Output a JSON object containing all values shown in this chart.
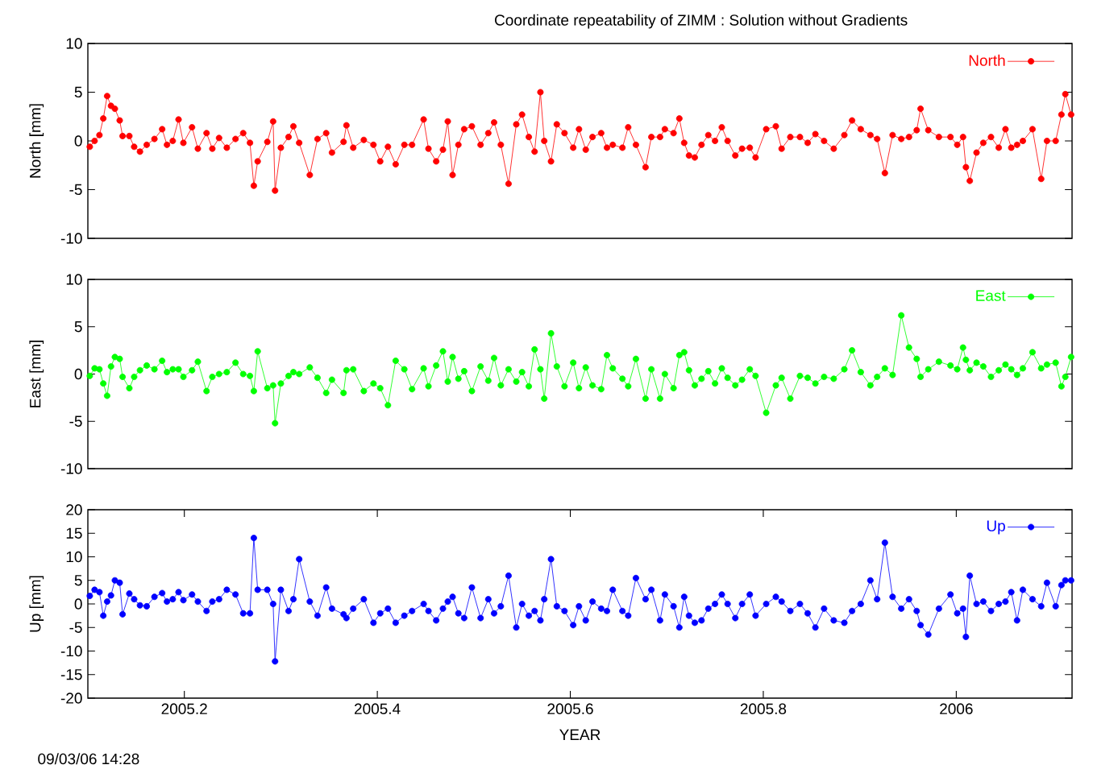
{
  "chart_data": [
    {
      "type": "line",
      "title": "Coordinate repeatability of ZIMM : Solution without Gradients",
      "ylabel": "North [mm]",
      "xlim": [
        2005.1,
        2006.12
      ],
      "ylim": [
        -10,
        10
      ],
      "yticks": [
        -10,
        -5,
        0,
        5,
        10
      ],
      "tick_labels": "y",
      "legend": "top right",
      "marker": "circle",
      "line_style": "solid",
      "x": [
        2005.102,
        2005.107,
        2005.112,
        2005.116,
        2005.12,
        2005.124,
        2005.128,
        2005.133,
        2005.136,
        2005.143,
        2005.148,
        2005.154,
        2005.161,
        2005.169,
        2005.177,
        2005.182,
        2005.188,
        2005.194,
        2005.199,
        2005.208,
        2005.214,
        2005.223,
        2005.229,
        2005.236,
        2005.244,
        2005.253,
        2005.261,
        2005.268,
        2005.272,
        2005.276,
        2005.286,
        2005.292,
        2005.294,
        2005.3,
        2005.308,
        2005.313,
        2005.319,
        2005.33,
        2005.338,
        2005.347,
        2005.353,
        2005.365,
        2005.368,
        2005.375,
        2005.386,
        2005.396,
        2005.403,
        2005.411,
        2005.419,
        2005.428,
        2005.436,
        2005.448,
        2005.453,
        2005.461,
        2005.468,
        2005.473,
        2005.478,
        2005.484,
        2005.49,
        2005.498,
        2005.507,
        2005.515,
        2005.521,
        2005.528,
        2005.536,
        2005.544,
        2005.55,
        2005.557,
        2005.563,
        2005.569,
        2005.573,
        2005.58,
        2005.586,
        2005.594,
        2005.603,
        2005.609,
        2005.616,
        2005.623,
        2005.632,
        2005.638,
        2005.644,
        2005.654,
        2005.66,
        2005.668,
        2005.678,
        2005.684,
        2005.693,
        2005.698,
        2005.707,
        2005.713,
        2005.718,
        2005.723,
        2005.729,
        2005.736,
        2005.743,
        2005.75,
        2005.757,
        2005.763,
        2005.771,
        2005.778,
        2005.786,
        2005.792,
        2005.803,
        2005.813,
        2005.819,
        2005.828,
        2005.838,
        2005.846,
        2005.854,
        2005.863,
        2005.873,
        2005.884,
        2005.892,
        2005.901,
        2005.911,
        2005.918,
        2005.926,
        2005.934,
        2005.943,
        2005.951,
        2005.959,
        2005.963,
        2005.971,
        2005.982,
        2005.994,
        2006.001,
        2006.007,
        2006.01,
        2006.014,
        2006.021,
        2006.028,
        2006.036,
        2006.044,
        2006.051,
        2006.057,
        2006.063,
        2006.069,
        2006.079,
        2006.088,
        2006.094,
        2006.103,
        2006.109,
        2006.113,
        2006.119
      ],
      "series": [
        {
          "name": "North",
          "color": "#ff0000",
          "values": [
            -0.6,
            0,
            0.6,
            2.3,
            4.6,
            3.6,
            3.3,
            2.1,
            0.5,
            0.5,
            -0.6,
            -1.1,
            -0.4,
            0.2,
            1.2,
            -0.4,
            0,
            2.2,
            -0.2,
            1.4,
            -0.8,
            0.8,
            -0.8,
            0.3,
            -0.7,
            0.2,
            0.8,
            -0.2,
            -4.6,
            -2.1,
            -0.1,
            2,
            -5.1,
            -0.7,
            0.4,
            1.5,
            -0.2,
            -3.5,
            0.2,
            0.8,
            -1.2,
            -0.1,
            1.6,
            -0.7,
            0.1,
            -0.4,
            -2.1,
            -0.6,
            -2.4,
            -0.4,
            -0.4,
            2.2,
            -0.8,
            -2.1,
            -0.9,
            2,
            -3.5,
            -0.4,
            1.2,
            1.5,
            -0.4,
            0.8,
            1.9,
            -0.4,
            -4.4,
            1.7,
            2.7,
            0.4,
            -1.1,
            5,
            0,
            -2.1,
            1.7,
            0.8,
            -0.7,
            1.2,
            -0.9,
            0.4,
            0.8,
            -0.7,
            -0.4,
            -0.7,
            1.4,
            -0.4,
            -2.7,
            0.4,
            0.4,
            1.2,
            0.8,
            2.3,
            -0.2,
            -1.5,
            -1.7,
            -0.4,
            0.6,
            0,
            1.4,
            0,
            -1.5,
            -0.8,
            -0.7,
            -1.7,
            1.2,
            1.5,
            -0.8,
            0.4,
            0.4,
            -0.2,
            0.7,
            0,
            -0.8,
            0.6,
            2.1,
            1.2,
            0.6,
            0.2,
            -3.3,
            0.6,
            0.2,
            0.4,
            1.1,
            3.3,
            1.1,
            0.4,
            0.4,
            -0.4,
            0.4,
            -2.7,
            -4.1,
            -1.2,
            -0.2,
            0.4,
            -0.7,
            1.2,
            -0.7,
            -0.4,
            0,
            1.2,
            -3.9,
            0,
            0,
            2.7,
            4.8,
            2.7
          ]
        }
      ]
    },
    {
      "type": "line",
      "ylabel": "East [mm]",
      "xlim": [
        2005.1,
        2006.12
      ],
      "ylim": [
        -10,
        10
      ],
      "yticks": [
        -10,
        -5,
        0,
        5,
        10
      ],
      "tick_labels": "y",
      "legend": "top right",
      "marker": "circle",
      "line_style": "solid",
      "x": [
        2005.102,
        2005.107,
        2005.112,
        2005.116,
        2005.12,
        2005.124,
        2005.128,
        2005.133,
        2005.136,
        2005.143,
        2005.148,
        2005.154,
        2005.161,
        2005.169,
        2005.177,
        2005.182,
        2005.188,
        2005.194,
        2005.199,
        2005.208,
        2005.214,
        2005.223,
        2005.229,
        2005.236,
        2005.244,
        2005.253,
        2005.261,
        2005.268,
        2005.272,
        2005.276,
        2005.286,
        2005.292,
        2005.294,
        2005.3,
        2005.308,
        2005.313,
        2005.319,
        2005.33,
        2005.338,
        2005.347,
        2005.353,
        2005.365,
        2005.368,
        2005.375,
        2005.386,
        2005.396,
        2005.403,
        2005.411,
        2005.419,
        2005.428,
        2005.436,
        2005.448,
        2005.453,
        2005.461,
        2005.468,
        2005.473,
        2005.478,
        2005.484,
        2005.49,
        2005.498,
        2005.507,
        2005.515,
        2005.521,
        2005.528,
        2005.536,
        2005.544,
        2005.55,
        2005.557,
        2005.563,
        2005.569,
        2005.573,
        2005.58,
        2005.586,
        2005.594,
        2005.603,
        2005.609,
        2005.616,
        2005.623,
        2005.632,
        2005.638,
        2005.644,
        2005.654,
        2005.66,
        2005.668,
        2005.678,
        2005.684,
        2005.693,
        2005.698,
        2005.707,
        2005.713,
        2005.718,
        2005.723,
        2005.729,
        2005.736,
        2005.743,
        2005.75,
        2005.757,
        2005.763,
        2005.771,
        2005.778,
        2005.786,
        2005.792,
        2005.803,
        2005.813,
        2005.819,
        2005.828,
        2005.838,
        2005.846,
        2005.854,
        2005.863,
        2005.873,
        2005.884,
        2005.892,
        2005.901,
        2005.911,
        2005.918,
        2005.926,
        2005.934,
        2005.943,
        2005.951,
        2005.959,
        2005.963,
        2005.971,
        2005.982,
        2005.994,
        2006.001,
        2006.007,
        2006.01,
        2006.014,
        2006.021,
        2006.028,
        2006.036,
        2006.044,
        2006.051,
        2006.057,
        2006.063,
        2006.069,
        2006.079,
        2006.088,
        2006.094,
        2006.103,
        2006.109,
        2006.113,
        2006.119
      ],
      "series": [
        {
          "name": "East",
          "color": "#00ff00",
          "values": [
            -0.2,
            0.6,
            0.5,
            -1.0,
            -2.3,
            0.8,
            1.8,
            1.6,
            -0.3,
            -1.5,
            -0.3,
            0.4,
            0.9,
            0.5,
            1.4,
            0.2,
            0.5,
            0.5,
            -0.3,
            0.4,
            1.3,
            -1.8,
            -0.3,
            0,
            0.2,
            1.2,
            0,
            -0.2,
            -1.8,
            2.4,
            -1.5,
            -1.2,
            -5.2,
            -1.0,
            -0.2,
            0.2,
            0,
            0.7,
            -0.4,
            -2.0,
            -0.6,
            -2.0,
            0.4,
            0.5,
            -1.8,
            -1.0,
            -1.5,
            -3.3,
            1.4,
            0.5,
            -1.6,
            0.6,
            -1.3,
            0.9,
            2.4,
            -0.8,
            1.8,
            -0.5,
            0.3,
            -1.8,
            0.8,
            -0.7,
            1.7,
            -1.2,
            0.5,
            -0.8,
            0.2,
            -1.3,
            2.6,
            0.5,
            -2.6,
            4.3,
            0.8,
            -1.3,
            1.2,
            -1.5,
            0.7,
            -1.2,
            -1.6,
            2.0,
            0.6,
            -0.5,
            -1.3,
            1.6,
            -2.6,
            0.5,
            -2.6,
            0,
            -1.5,
            2.0,
            2.3,
            0.4,
            -1.2,
            -0.5,
            0.3,
            -1.0,
            0.6,
            -0.4,
            -1.2,
            -0.6,
            0.5,
            -0.2,
            -4.1,
            -1.2,
            -0.4,
            -2.6,
            -0.2,
            -0.4,
            -1.0,
            -0.3,
            -0.5,
            0.5,
            2.5,
            0.2,
            -1.2,
            -0.3,
            0.6,
            -0.1,
            6.2,
            2.8,
            1.6,
            -0.3,
            0.5,
            1.3,
            0.9,
            0.5,
            2.8,
            1.5,
            0.4,
            1.2,
            0.8,
            -0.3,
            0.4,
            1.0,
            0.5,
            -0.1,
            0.6,
            2.3,
            0.6,
            1.0,
            1.2,
            -1.3,
            -0.3,
            1.8
          ]
        }
      ]
    },
    {
      "type": "line",
      "xlabel": "YEAR",
      "ylabel": "Up [mm]",
      "annotations": [
        "09/03/06 14:28"
      ],
      "xlim": [
        2005.1,
        2006.12
      ],
      "ylim": [
        -20,
        20
      ],
      "xticks": [
        2005.2,
        2005.4,
        2005.6,
        2005.8,
        2006
      ],
      "yticks": [
        -20,
        -15,
        -10,
        -5,
        0,
        5,
        10,
        15,
        20
      ],
      "legend": "top right",
      "marker": "circle",
      "line_style": "solid",
      "x": [
        2005.102,
        2005.107,
        2005.112,
        2005.116,
        2005.12,
        2005.124,
        2005.128,
        2005.133,
        2005.136,
        2005.143,
        2005.148,
        2005.154,
        2005.161,
        2005.169,
        2005.177,
        2005.182,
        2005.188,
        2005.194,
        2005.199,
        2005.208,
        2005.214,
        2005.223,
        2005.229,
        2005.236,
        2005.244,
        2005.253,
        2005.261,
        2005.268,
        2005.272,
        2005.276,
        2005.286,
        2005.292,
        2005.294,
        2005.3,
        2005.308,
        2005.313,
        2005.319,
        2005.33,
        2005.338,
        2005.347,
        2005.353,
        2005.365,
        2005.368,
        2005.375,
        2005.386,
        2005.396,
        2005.403,
        2005.411,
        2005.419,
        2005.428,
        2005.436,
        2005.448,
        2005.453,
        2005.461,
        2005.468,
        2005.473,
        2005.478,
        2005.484,
        2005.49,
        2005.498,
        2005.507,
        2005.515,
        2005.521,
        2005.528,
        2005.536,
        2005.544,
        2005.55,
        2005.557,
        2005.563,
        2005.569,
        2005.573,
        2005.58,
        2005.586,
        2005.594,
        2005.603,
        2005.609,
        2005.616,
        2005.623,
        2005.632,
        2005.638,
        2005.644,
        2005.654,
        2005.66,
        2005.668,
        2005.678,
        2005.684,
        2005.693,
        2005.698,
        2005.707,
        2005.713,
        2005.718,
        2005.723,
        2005.729,
        2005.736,
        2005.743,
        2005.75,
        2005.757,
        2005.763,
        2005.771,
        2005.778,
        2005.786,
        2005.792,
        2005.803,
        2005.813,
        2005.819,
        2005.828,
        2005.838,
        2005.846,
        2005.854,
        2005.863,
        2005.873,
        2005.884,
        2005.892,
        2005.901,
        2005.911,
        2005.918,
        2005.926,
        2005.934,
        2005.943,
        2005.951,
        2005.959,
        2005.963,
        2005.971,
        2005.982,
        2005.994,
        2006.001,
        2006.007,
        2006.01,
        2006.014,
        2006.021,
        2006.028,
        2006.036,
        2006.044,
        2006.051,
        2006.057,
        2006.063,
        2006.069,
        2006.079,
        2006.088,
        2006.094,
        2006.103,
        2006.109,
        2006.113,
        2006.119
      ],
      "series": [
        {
          "name": "Up",
          "color": "#0000ff",
          "values": [
            1.7,
            3.0,
            2.5,
            -2.5,
            0.5,
            1.8,
            5.0,
            4.5,
            -2.2,
            2.2,
            1.0,
            -0.3,
            -0.5,
            1.5,
            2.3,
            0.5,
            1.0,
            2.5,
            0.8,
            2.0,
            0.5,
            -1.5,
            0.5,
            1.0,
            3.0,
            2.0,
            -2.0,
            -2.0,
            14,
            3.0,
            3.0,
            0,
            -12.2,
            3.0,
            -1.5,
            1.0,
            9.5,
            0.5,
            -2.5,
            3.5,
            -1.0,
            -2.2,
            -3.0,
            -1.0,
            1.0,
            -4.0,
            -2.0,
            -1.0,
            -4.0,
            -2.5,
            -1.5,
            0,
            -1.5,
            -3.5,
            -1.0,
            0.5,
            1.5,
            -2.0,
            -3.0,
            3.5,
            -3.0,
            1.0,
            -2.0,
            -0.5,
            6.0,
            -5.0,
            0,
            -2.5,
            -1.5,
            -3.5,
            1.0,
            9.5,
            -0.5,
            -1.5,
            -4.5,
            -0.5,
            -3.5,
            0.5,
            -1.0,
            -1.5,
            3.0,
            -1.5,
            -2.5,
            5.5,
            1.0,
            3.0,
            -3.5,
            2.0,
            -0.5,
            -5.0,
            1.5,
            -2.5,
            -4.0,
            -3.5,
            -1.0,
            0,
            2.0,
            0,
            -3.0,
            0,
            2.0,
            -2.5,
            0,
            1.5,
            0.5,
            -1.5,
            0,
            -2.0,
            -5.0,
            -1.0,
            -3.5,
            -4.0,
            -1.5,
            0,
            5.0,
            1.0,
            13,
            1.5,
            -1.0,
            1.0,
            -1.5,
            -4.5,
            -6.5,
            -1.0,
            2.0,
            -2.0,
            -1.0,
            -7.0,
            6.0,
            0,
            0.5,
            -1.5,
            0,
            0.5,
            2.5,
            -3.5,
            3.0,
            1.0,
            -0.5,
            4.5,
            -0.5,
            4.0,
            5.0,
            5.0
          ]
        }
      ]
    }
  ]
}
